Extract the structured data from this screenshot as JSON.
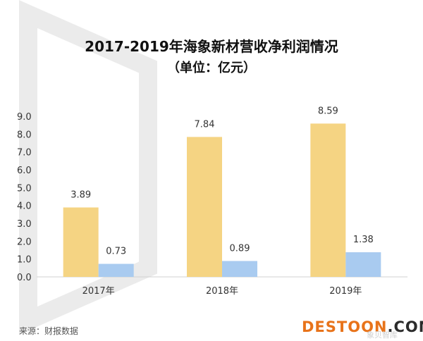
{
  "chart_data": {
    "type": "bar",
    "title": "2017-2019年海象新材营收净利润情况",
    "subtitle": "（单位：亿元）",
    "categories": [
      "2017年",
      "2018年",
      "2019年"
    ],
    "series": [
      {
        "values": [
          3.89,
          7.84,
          8.59
        ],
        "color": "#F5D483",
        "labels": [
          "3.89",
          "7.84",
          "8.59"
        ]
      },
      {
        "values": [
          0.73,
          0.89,
          1.38
        ],
        "color": "#A9CBF0",
        "labels": [
          "0.73",
          "0.89",
          "1.38"
        ]
      }
    ],
    "yticks": [
      "0.0",
      "1.0",
      "2.0",
      "3.0",
      "4.0",
      "5.0",
      "6.0",
      "7.0",
      "8.0",
      "9.0"
    ],
    "ylim": [
      0,
      9
    ],
    "grid": false,
    "legend": "none"
  },
  "source": "来源：财报数据",
  "watermark": {
    "site_a": "DESTOON",
    "site_b": ".COM",
    "site_a_color": "#E8731A",
    "site_b_color": "#2B2B2B",
    "cn": "象贝智库"
  }
}
